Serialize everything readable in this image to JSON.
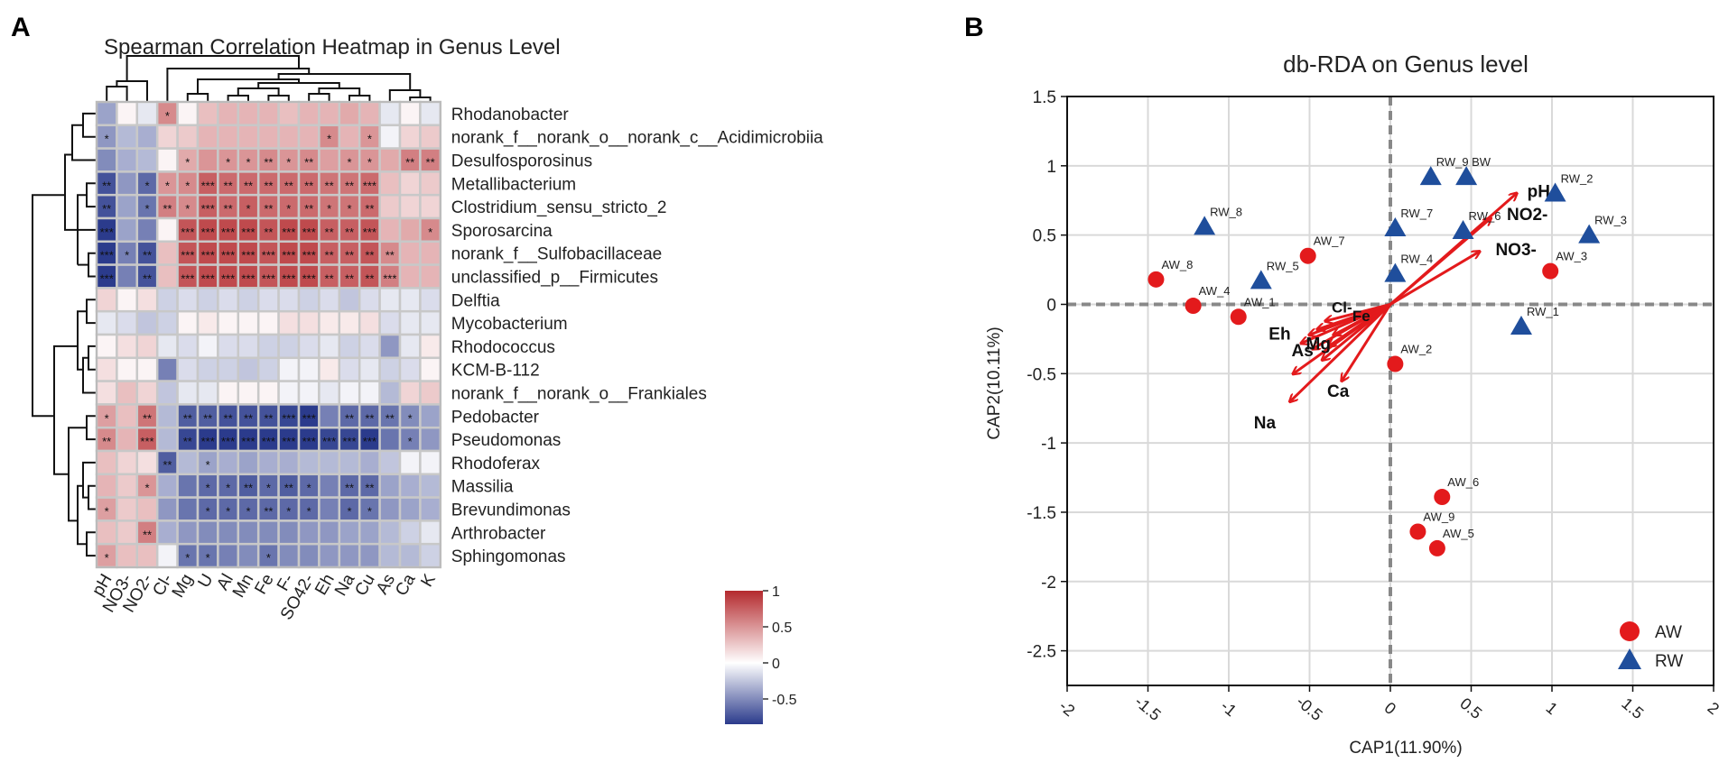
{
  "chart_data": [
    {
      "type": "heatmap",
      "panel_label": "A",
      "title": "Spearman Correlation Heatmap in Genus Level",
      "columns": [
        "pH",
        "NO3-",
        "NO2-",
        "Cl-",
        "Mg",
        "U",
        "Al",
        "Mn",
        "Fe",
        "F-",
        "SO42-",
        "Eh",
        "Na",
        "Cu",
        "As",
        "Ca",
        "K"
      ],
      "rows": [
        "Rhodanobacter",
        "norank_f__norank_o__norank_c__Acidimicrobiia",
        "Desulfosporosinus",
        "Metallibacterium",
        "Clostridium_sensu_stricto_2",
        "Sporosarcina",
        "norank_f__Sulfobacillaceae",
        "unclassified_p__Firmicutes",
        "Delftia",
        "Mycobacterium",
        "Rhodococcus",
        "KCM-B-112",
        "norank_f__norank_o__Frankiales",
        "Pedobacter",
        "Pseudomonas",
        "Rhodoferax",
        "Massilia",
        "Brevundimonas",
        "Arthrobacter",
        "Sphingomonas"
      ],
      "values": [
        [
          -0.4,
          0.05,
          -0.1,
          0.55,
          0.05,
          0.3,
          0.35,
          0.35,
          0.35,
          0.3,
          0.35,
          0.35,
          0.4,
          0.35,
          -0.1,
          0.05,
          -0.1
        ],
        [
          -0.45,
          -0.3,
          -0.35,
          0.2,
          0.25,
          0.35,
          0.35,
          0.35,
          0.35,
          0.35,
          0.35,
          0.55,
          0.35,
          0.5,
          -0.05,
          0.2,
          0.25
        ],
        [
          -0.5,
          -0.35,
          -0.3,
          0.05,
          0.4,
          0.5,
          0.5,
          0.5,
          0.55,
          0.5,
          0.55,
          0.45,
          0.5,
          0.5,
          0.4,
          0.6,
          0.6
        ],
        [
          -0.75,
          -0.45,
          -0.65,
          0.5,
          0.55,
          0.75,
          0.7,
          0.7,
          0.7,
          0.7,
          0.7,
          0.65,
          0.65,
          0.7,
          0.3,
          0.2,
          0.25
        ],
        [
          -0.75,
          -0.4,
          -0.6,
          0.6,
          0.55,
          0.75,
          0.7,
          0.75,
          0.7,
          0.7,
          0.7,
          0.65,
          0.65,
          0.7,
          0.25,
          0.2,
          0.2
        ],
        [
          -0.85,
          -0.4,
          -0.55,
          0.05,
          0.8,
          0.85,
          0.85,
          0.85,
          0.8,
          0.85,
          0.85,
          0.75,
          0.75,
          0.8,
          0.35,
          0.4,
          0.55
        ],
        [
          -0.85,
          -0.55,
          -0.75,
          0.3,
          0.8,
          0.85,
          0.85,
          0.85,
          0.8,
          0.85,
          0.85,
          0.75,
          0.75,
          0.8,
          0.55,
          0.35,
          0.35
        ],
        [
          -0.85,
          -0.55,
          -0.75,
          0.3,
          0.8,
          0.85,
          0.85,
          0.85,
          0.8,
          0.85,
          0.85,
          0.75,
          0.75,
          0.8,
          0.6,
          0.35,
          0.35
        ],
        [
          0.2,
          0.05,
          0.15,
          -0.2,
          -0.15,
          -0.2,
          -0.15,
          -0.2,
          -0.15,
          -0.15,
          -0.2,
          -0.15,
          -0.25,
          -0.15,
          -0.1,
          -0.1,
          -0.15
        ],
        [
          -0.1,
          -0.15,
          -0.25,
          -0.2,
          0.05,
          0.1,
          0.05,
          0.05,
          0.05,
          0.15,
          0.15,
          0.1,
          0.1,
          0.15,
          -0.15,
          -0.1,
          -0.1
        ],
        [
          0.05,
          0.15,
          0.2,
          -0.1,
          -0.15,
          -0.05,
          -0.15,
          -0.15,
          -0.2,
          -0.2,
          -0.15,
          -0.1,
          -0.2,
          -0.15,
          -0.45,
          -0.1,
          0.1
        ],
        [
          0.15,
          0.05,
          0.05,
          -0.55,
          -0.15,
          -0.2,
          -0.2,
          -0.25,
          -0.2,
          -0.05,
          -0.05,
          0.1,
          -0.15,
          -0.1,
          -0.2,
          -0.15,
          0.05
        ],
        [
          0.15,
          0.3,
          0.2,
          -0.25,
          -0.1,
          -0.1,
          0.05,
          0.05,
          0.05,
          -0.05,
          -0.05,
          -0.1,
          -0.05,
          -0.05,
          -0.3,
          0.2,
          0.25
        ],
        [
          0.45,
          0.3,
          0.65,
          -0.3,
          -0.7,
          -0.7,
          -0.75,
          -0.75,
          -0.75,
          -0.8,
          -0.85,
          -0.55,
          -0.65,
          -0.65,
          -0.6,
          -0.5,
          -0.4
        ],
        [
          0.55,
          0.35,
          0.75,
          -0.3,
          -0.8,
          -0.85,
          -0.85,
          -0.85,
          -0.85,
          -0.85,
          -0.85,
          -0.8,
          -0.8,
          -0.85,
          -0.6,
          -0.55,
          -0.45
        ],
        [
          0.3,
          0.2,
          0.15,
          -0.7,
          -0.3,
          -0.4,
          -0.35,
          -0.4,
          -0.35,
          -0.35,
          -0.3,
          -0.3,
          -0.3,
          -0.35,
          -0.25,
          -0.05,
          -0.05
        ],
        [
          0.35,
          0.25,
          0.5,
          -0.35,
          -0.6,
          -0.65,
          -0.65,
          -0.7,
          -0.65,
          -0.7,
          -0.65,
          -0.55,
          -0.65,
          -0.65,
          -0.4,
          -0.35,
          -0.3
        ],
        [
          0.45,
          0.25,
          0.3,
          -0.45,
          -0.6,
          -0.65,
          -0.65,
          -0.65,
          -0.65,
          -0.65,
          -0.65,
          -0.55,
          -0.65,
          -0.6,
          -0.45,
          -0.4,
          -0.35
        ],
        [
          0.3,
          0.25,
          0.6,
          -0.35,
          -0.45,
          -0.5,
          -0.5,
          -0.5,
          -0.5,
          -0.5,
          -0.45,
          -0.45,
          -0.4,
          -0.4,
          -0.3,
          -0.2,
          -0.1
        ],
        [
          0.45,
          0.3,
          0.3,
          -0.05,
          -0.6,
          -0.6,
          -0.55,
          -0.5,
          -0.6,
          -0.5,
          -0.5,
          -0.45,
          -0.45,
          -0.45,
          -0.3,
          -0.3,
          -0.2
        ]
      ],
      "significance": [
        [
          "",
          "",
          "",
          "*",
          "",
          "",
          "",
          "",
          "",
          "",
          "",
          "",
          "",
          "",
          "",
          "",
          ""
        ],
        [
          "*",
          "",
          "",
          "",
          "",
          "",
          "",
          "",
          "",
          "",
          "",
          "*",
          "",
          "*",
          "",
          "",
          ""
        ],
        [
          "",
          "",
          "",
          "",
          "*",
          "",
          "*",
          "*",
          "**",
          "*",
          "**",
          "",
          "*",
          "*",
          "",
          "**",
          "**"
        ],
        [
          "**",
          "",
          "*",
          "*",
          "*",
          "***",
          "**",
          "**",
          "**",
          "**",
          "**",
          "**",
          "**",
          "***",
          "",
          "",
          ""
        ],
        [
          "**",
          "",
          "*",
          "**",
          "*",
          "***",
          "**",
          "*",
          "**",
          "*",
          "**",
          "*",
          "*",
          "**",
          "",
          "",
          ""
        ],
        [
          "***",
          "",
          "",
          "",
          "***",
          "***",
          "***",
          "***",
          "**",
          "***",
          "***",
          "**",
          "**",
          "***",
          "",
          "",
          "*"
        ],
        [
          "***",
          "*",
          "**",
          "",
          "***",
          "***",
          "***",
          "***",
          "***",
          "***",
          "***",
          "**",
          "**",
          "**",
          "**",
          "",
          ""
        ],
        [
          "***",
          "",
          "**",
          "",
          "***",
          "***",
          "***",
          "***",
          "***",
          "***",
          "***",
          "**",
          "**",
          "**",
          "***",
          "",
          ""
        ],
        [
          "",
          "",
          "",
          "",
          "",
          "",
          "",
          "",
          "",
          "",
          "",
          "",
          "",
          "",
          "",
          "",
          ""
        ],
        [
          "",
          "",
          "",
          "",
          "",
          "",
          "",
          "",
          "",
          "",
          "",
          "",
          "",
          "",
          "",
          "",
          ""
        ],
        [
          "",
          "",
          "",
          "",
          "",
          "",
          "",
          "",
          "",
          "",
          "",
          "",
          "",
          "",
          "",
          "",
          ""
        ],
        [
          "",
          "",
          "",
          "",
          "",
          "",
          "",
          "",
          "",
          "",
          "",
          "",
          "",
          "",
          "",
          "",
          ""
        ],
        [
          "",
          "",
          "",
          "",
          "",
          "",
          "",
          "",
          "",
          "",
          "",
          "",
          "",
          "",
          "",
          "",
          ""
        ],
        [
          "*",
          "",
          "**",
          "",
          "**",
          "**",
          "**",
          "**",
          "**",
          "***",
          "***",
          "",
          "**",
          "**",
          "**",
          "*",
          ""
        ],
        [
          "**",
          "",
          "***",
          "",
          "**",
          "***",
          "***",
          "***",
          "***",
          "***",
          "***",
          "***",
          "***",
          "***",
          "",
          "*",
          ""
        ],
        [
          "",
          "",
          "",
          "**",
          "",
          "*",
          "",
          "",
          "",
          "",
          "",
          "",
          "",
          "",
          "",
          "",
          ""
        ],
        [
          "",
          "",
          "*",
          "",
          "",
          "*",
          "*",
          "**",
          "*",
          "**",
          "*",
          "",
          "**",
          "**",
          "",
          "",
          ""
        ],
        [
          "*",
          "",
          "",
          "",
          "",
          "*",
          "*",
          "*",
          "**",
          "*",
          "*",
          "",
          "*",
          "*",
          "",
          "",
          ""
        ],
        [
          "",
          "",
          "**",
          "",
          "",
          "",
          "",
          "",
          "",
          "",
          "",
          "",
          "",
          "",
          "",
          "",
          ""
        ],
        [
          "*",
          "",
          "",
          "",
          "*",
          "*",
          "",
          "",
          "*",
          "",
          "",
          "",
          "",
          "",
          "",
          "",
          ""
        ]
      ],
      "colorbar": {
        "min": -0.85,
        "max": 1,
        "ticks": [
          1,
          0.5,
          0,
          -0.5
        ],
        "tick_labels": [
          "1",
          "0.5",
          "0",
          "-0.5"
        ]
      },
      "colors": {
        "negative": "#2b3b8c",
        "zero": "#ffffff",
        "positive": "#b42a2e",
        "grid": "#c8c8c8"
      }
    },
    {
      "type": "scatter",
      "panel_label": "B",
      "title": "db-RDA on Genus level",
      "xlabel": "CAP1(11.90%)",
      "ylabel": "CAP2(10.11%)",
      "xlim": [
        -2,
        2
      ],
      "ylim": [
        -2.75,
        1.5
      ],
      "xticks": [
        -2,
        -1.5,
        -1,
        -0.5,
        0,
        0.5,
        1,
        1.5,
        2
      ],
      "xtick_labels": [
        "-2",
        "-1.5",
        "-1",
        "-0.5",
        "0",
        "0.5",
        "1",
        "1.5",
        "2"
      ],
      "yticks": [
        1.5,
        1,
        0.5,
        0,
        -0.5,
        -1,
        -1.5,
        -2,
        -2.5
      ],
      "ytick_labels": [
        "1.5",
        "1",
        "0.5",
        "0",
        "-0.5",
        "-1",
        "-1.5",
        "-2",
        "-2.5"
      ],
      "series": [
        {
          "name": "AW",
          "marker": "circle",
          "color": "#e31a1c",
          "points": [
            {
              "label": "AW_8",
              "x": -1.45,
              "y": 0.18
            },
            {
              "label": "AW_4",
              "x": -1.22,
              "y": -0.01
            },
            {
              "label": "AW_1",
              "x": -0.94,
              "y": -0.09
            },
            {
              "label": "AW_7",
              "x": -0.51,
              "y": 0.35
            },
            {
              "label": "AW_2",
              "x": 0.03,
              "y": -0.43
            },
            {
              "label": "AW_3",
              "x": 0.99,
              "y": 0.24
            },
            {
              "label": "AW_6",
              "x": 0.32,
              "y": -1.39
            },
            {
              "label": "AW_9",
              "x": 0.17,
              "y": -1.64
            },
            {
              "label": "AW_5",
              "x": 0.29,
              "y": -1.76
            }
          ]
        },
        {
          "name": "RW",
          "marker": "triangle",
          "color": "#1f4e9c",
          "points": [
            {
              "label": "RW_8",
              "x": -1.15,
              "y": 0.56
            },
            {
              "label": "RW_5",
              "x": -0.8,
              "y": 0.17
            },
            {
              "label": "RW_7",
              "x": 0.03,
              "y": 0.55
            },
            {
              "label": "RW_4",
              "x": 0.03,
              "y": 0.22
            },
            {
              "label": "RW_9",
              "x": 0.25,
              "y": 0.92
            },
            {
              "label": "BW",
              "x": 0.47,
              "y": 0.92
            },
            {
              "label": "RW_6",
              "x": 0.45,
              "y": 0.53
            },
            {
              "label": "RW_2",
              "x": 1.02,
              "y": 0.8
            },
            {
              "label": "RW_3",
              "x": 1.23,
              "y": 0.5
            },
            {
              "label": "RW_1",
              "x": 0.81,
              "y": -0.16
            }
          ]
        }
      ],
      "vectors": [
        {
          "label": "pH",
          "x": 0.78,
          "y": 0.8
        },
        {
          "label": "NO2-",
          "x": 0.62,
          "y": 0.62
        },
        {
          "label": "NO3-",
          "x": 0.55,
          "y": 0.38
        },
        {
          "label": "Eh",
          "x": -0.55,
          "y": -0.28
        },
        {
          "label": "Mg",
          "x": -0.38,
          "y": -0.3
        },
        {
          "label": "As",
          "x": -0.42,
          "y": -0.4
        },
        {
          "label": "Ca",
          "x": -0.3,
          "y": -0.55
        },
        {
          "label": "Na",
          "x": -0.62,
          "y": -0.7
        },
        {
          "label": "",
          "x": -0.6,
          "y": -0.5
        },
        {
          "label": "",
          "x": -0.5,
          "y": -0.22
        },
        {
          "label": "",
          "x": -0.45,
          "y": -0.18
        },
        {
          "label": "",
          "x": -0.4,
          "y": -0.12
        },
        {
          "label": "",
          "x": -0.48,
          "y": -0.32
        },
        {
          "label": "",
          "x": -0.35,
          "y": -0.22
        }
      ],
      "vector_overlap_labels": [
        "Cl-",
        "Fe"
      ],
      "vector_color": "#e31a1c",
      "legend": {
        "position": "bottom-right",
        "entries": [
          "AW",
          "RW"
        ]
      }
    }
  ]
}
